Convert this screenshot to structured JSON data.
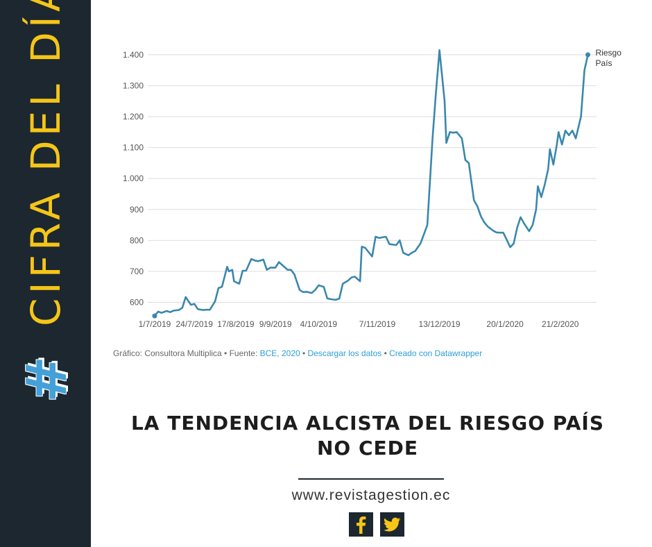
{
  "sidebar": {
    "hashtag": "#",
    "title": "CIFRA DEL DÍA",
    "hashtag_color": "#43a0d8",
    "title_color": "#f5c518",
    "background": "#1c2730"
  },
  "chart_data": {
    "type": "line",
    "series": [
      {
        "name": "",
        "color": "#3a87ad",
        "end_label": "Riesgo\nPaís",
        "points": [
          [
            "2019-07-01",
            556
          ],
          [
            "2019-07-03",
            570
          ],
          [
            "2019-07-05",
            566
          ],
          [
            "2019-07-08",
            572
          ],
          [
            "2019-07-10",
            568
          ],
          [
            "2019-07-12",
            573
          ],
          [
            "2019-07-15",
            575
          ],
          [
            "2019-07-17",
            582
          ],
          [
            "2019-07-19",
            617
          ],
          [
            "2019-07-22",
            592
          ],
          [
            "2019-07-24",
            595
          ],
          [
            "2019-07-26",
            578
          ],
          [
            "2019-07-29",
            575
          ],
          [
            "2019-07-31",
            576
          ],
          [
            "2019-08-02",
            576
          ],
          [
            "2019-08-05",
            603
          ],
          [
            "2019-08-07",
            646
          ],
          [
            "2019-08-09",
            650
          ],
          [
            "2019-08-12",
            715
          ],
          [
            "2019-08-13",
            700
          ],
          [
            "2019-08-15",
            705
          ],
          [
            "2019-08-16",
            668
          ],
          [
            "2019-08-19",
            660
          ],
          [
            "2019-08-21",
            702
          ],
          [
            "2019-08-23",
            702
          ],
          [
            "2019-08-26",
            740
          ],
          [
            "2019-08-28",
            735
          ],
          [
            "2019-08-30",
            733
          ],
          [
            "2019-09-02",
            738
          ],
          [
            "2019-09-04",
            705
          ],
          [
            "2019-09-06",
            712
          ],
          [
            "2019-09-09",
            712
          ],
          [
            "2019-09-11",
            730
          ],
          [
            "2019-09-13",
            720
          ],
          [
            "2019-09-16",
            705
          ],
          [
            "2019-09-18",
            705
          ],
          [
            "2019-09-20",
            690
          ],
          [
            "2019-09-23",
            640
          ],
          [
            "2019-09-25",
            633
          ],
          [
            "2019-09-27",
            634
          ],
          [
            "2019-09-30",
            630
          ],
          [
            "2019-10-02",
            640
          ],
          [
            "2019-10-04",
            655
          ],
          [
            "2019-10-07",
            650
          ],
          [
            "2019-10-09",
            613
          ],
          [
            "2019-10-11",
            610
          ],
          [
            "2019-10-14",
            608
          ],
          [
            "2019-10-16",
            612
          ],
          [
            "2019-10-18",
            660
          ],
          [
            "2019-10-21",
            670
          ],
          [
            "2019-10-23",
            680
          ],
          [
            "2019-10-25",
            683
          ],
          [
            "2019-10-28",
            668
          ],
          [
            "2019-10-29",
            780
          ],
          [
            "2019-10-31",
            776
          ],
          [
            "2019-11-04",
            748
          ],
          [
            "2019-11-06",
            812
          ],
          [
            "2019-11-08",
            808
          ],
          [
            "2019-11-12",
            812
          ],
          [
            "2019-11-14",
            788
          ],
          [
            "2019-11-18",
            785
          ],
          [
            "2019-11-20",
            800
          ],
          [
            "2019-11-22",
            760
          ],
          [
            "2019-11-25",
            752
          ],
          [
            "2019-11-27",
            760
          ],
          [
            "2019-11-29",
            766
          ],
          [
            "2019-12-02",
            790
          ],
          [
            "2019-12-04",
            820
          ],
          [
            "2019-12-06",
            850
          ],
          [
            "2019-12-09",
            1130
          ],
          [
            "2019-12-11",
            1280
          ],
          [
            "2019-12-13",
            1415
          ],
          [
            "2019-12-16",
            1250
          ],
          [
            "2019-12-17",
            1115
          ],
          [
            "2019-12-19",
            1150
          ],
          [
            "2019-12-21",
            1148
          ],
          [
            "2019-12-23",
            1150
          ],
          [
            "2019-12-26",
            1130
          ],
          [
            "2019-12-28",
            1060
          ],
          [
            "2019-12-30",
            1050
          ],
          [
            "2020-01-02",
            930
          ],
          [
            "2020-01-04",
            910
          ],
          [
            "2020-01-06",
            878
          ],
          [
            "2020-01-08",
            858
          ],
          [
            "2020-01-10",
            845
          ],
          [
            "2020-01-13",
            832
          ],
          [
            "2020-01-15",
            826
          ],
          [
            "2020-01-17",
            825
          ],
          [
            "2020-01-19",
            825
          ],
          [
            "2020-01-21",
            802
          ],
          [
            "2020-01-23",
            778
          ],
          [
            "2020-01-25",
            790
          ],
          [
            "2020-01-27",
            840
          ],
          [
            "2020-01-29",
            875
          ],
          [
            "2020-01-31",
            855
          ],
          [
            "2020-02-03",
            830
          ],
          [
            "2020-02-05",
            850
          ],
          [
            "2020-02-07",
            900
          ],
          [
            "2020-02-08",
            975
          ],
          [
            "2020-02-10",
            940
          ],
          [
            "2020-02-12",
            980
          ],
          [
            "2020-02-14",
            1030
          ],
          [
            "2020-02-15",
            1095
          ],
          [
            "2020-02-17",
            1045
          ],
          [
            "2020-02-19",
            1110
          ],
          [
            "2020-02-20",
            1150
          ],
          [
            "2020-02-22",
            1110
          ],
          [
            "2020-02-24",
            1155
          ],
          [
            "2020-02-26",
            1140
          ],
          [
            "2020-02-28",
            1155
          ],
          [
            "2020-03-01",
            1130
          ],
          [
            "2020-03-04",
            1200
          ],
          [
            "2020-03-06",
            1350
          ],
          [
            "2020-03-08",
            1400
          ]
        ]
      }
    ],
    "x_ticks": [
      [
        "2019-07-01",
        "1/7/2019"
      ],
      [
        "2019-07-24",
        "24/7/2019"
      ],
      [
        "2019-08-17",
        "17/8/2019"
      ],
      [
        "2019-09-09",
        "9/9/2019"
      ],
      [
        "2019-10-04",
        "4/10/2019"
      ],
      [
        "2019-11-07",
        "7/11/2019"
      ],
      [
        "2019-12-13",
        "13/12/2019"
      ],
      [
        "2020-01-20",
        "20/1/2020"
      ],
      [
        "2020-02-21",
        "21/2/2020"
      ]
    ],
    "y_ticks": [
      600,
      700,
      800,
      900,
      1000,
      1100,
      1200,
      1300,
      1400
    ],
    "y_tick_labels": [
      "600",
      "700",
      "800",
      "900",
      "1.000",
      "1.100",
      "1.200",
      "1.300",
      "1.400"
    ],
    "xlim": [
      "2019-06-27",
      "2020-03-13"
    ],
    "ylim": [
      545,
      1420
    ],
    "grid": "horizontal",
    "legend": "none"
  },
  "credits": {
    "prefix": "Gráfico: Consultora Multiplica • Fuente: ",
    "source_link": "BCE, 2020",
    "sep1": " • ",
    "download_link": "Descargar los datos",
    "sep2": " • ",
    "datawrapper_link": "Creado con Datawrapper"
  },
  "headline": {
    "line1": "LA TENDENCIA ALCISTA DEL RIESGO PAÍS",
    "line2": "NO CEDE"
  },
  "footer": {
    "website": "www.revistagestion.ec",
    "social_icons": [
      "facebook-icon",
      "twitter-icon"
    ],
    "icon_color": "#f5c518"
  }
}
